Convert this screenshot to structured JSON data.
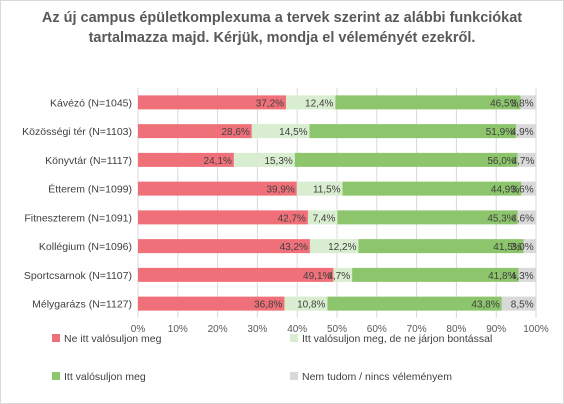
{
  "chart_data": {
    "type": "bar",
    "stacked": true,
    "orientation": "horizontal",
    "percent": true,
    "title": "Az új campus épületkomplexuma a tervek szerint az alábbi funkciókat tartalmazza majd. Kérjük, mondja el véleményét ezekről.",
    "categories": [
      "Kávézó (N=1045)",
      "Közösségi tér (N=1103)",
      "Könyvtár (N=1117)",
      "Étterem (N=1099)",
      "Fitneszterem (N=1091)",
      "Kollégium (N=1096)",
      "Sportcsarnok (N=1107)",
      "Mélygarázs (N=1127)"
    ],
    "series": [
      {
        "name": "Ne itt valósuljon meg",
        "color": "#f0707a",
        "values": [
          37.2,
          28.6,
          24.1,
          39.9,
          42.7,
          43.2,
          49.1,
          36.8
        ],
        "labels": [
          "37,2%",
          "28,6%",
          "24,1%",
          "39,9%",
          "42,7%",
          "43,2%",
          "49,1%",
          "36,8%"
        ]
      },
      {
        "name": "Itt valósuljon meg, de ne járjon bontással",
        "color": "#d9edd0",
        "values": [
          12.4,
          14.5,
          15.3,
          11.5,
          7.4,
          12.2,
          4.7,
          10.8
        ],
        "labels": [
          "12,4%",
          "14,5%",
          "15,3%",
          "11,5%",
          "7,4%",
          "12,2%",
          "4,7%",
          "10,8%"
        ]
      },
      {
        "name": "Itt valósuljon meg",
        "color": "#8cc56b",
        "values": [
          46.5,
          51.9,
          56.0,
          44.9,
          45.3,
          41.5,
          41.8,
          43.8
        ],
        "labels": [
          "46,5%",
          "51,9%",
          "56,0%",
          "44,9%",
          "45,3%",
          "41,5%",
          "41,8%",
          "43,8%"
        ]
      },
      {
        "name": "Nem tudom / nincs véleményem",
        "color": "#d9d9d9",
        "values": [
          3.8,
          4.9,
          4.7,
          3.6,
          4.6,
          3.0,
          4.3,
          8.5
        ],
        "labels": [
          "3,8%",
          "4,9%",
          "4,7%",
          "3,6%",
          "4,6%",
          "3,0%",
          "4,3%",
          "8,5%"
        ]
      }
    ],
    "xlim": [
      0,
      100
    ],
    "xticks": [
      "0%",
      "10%",
      "20%",
      "30%",
      "40%",
      "50%",
      "60%",
      "70%",
      "80%",
      "90%",
      "100%"
    ],
    "grid": true,
    "legend_position": "bottom"
  }
}
